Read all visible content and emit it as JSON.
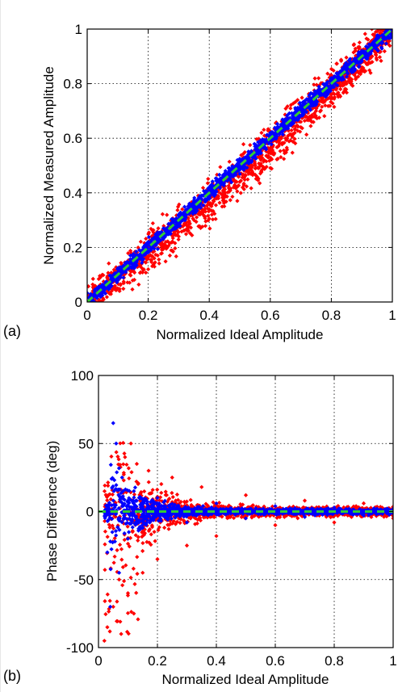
{
  "chart_data": [
    {
      "type": "scatter",
      "panel_label": "(a)",
      "xlabel": "Normalized Ideal Amplitude",
      "ylabel": "Normalized Measured Amplitude",
      "xlim": [
        0,
        1
      ],
      "ylim": [
        0,
        1
      ],
      "xticks": [
        "0",
        "0.2",
        "0.4",
        "0.6",
        "0.8",
        "1"
      ],
      "yticks": [
        "0",
        "0.2",
        "0.4",
        "0.6",
        "0.8",
        "1"
      ],
      "grid": true,
      "series": [
        {
          "color": "#ff0000",
          "marker": "diamond",
          "trend": "y ≈ x, wider spread (±0.1), below diagonal at mid range",
          "x": [
            0.02,
            0.04,
            0.05,
            0.07,
            0.08,
            0.1,
            0.12,
            0.14,
            0.15,
            0.17,
            0.2,
            0.22,
            0.25,
            0.28,
            0.3,
            0.33,
            0.35,
            0.38,
            0.4,
            0.43,
            0.45,
            0.48,
            0.5,
            0.53,
            0.55,
            0.58,
            0.6,
            0.63,
            0.65,
            0.68,
            0.7,
            0.73,
            0.75,
            0.78,
            0.8,
            0.83,
            0.85,
            0.88,
            0.9,
            0.93,
            0.95,
            0.97,
            1.0
          ],
          "y": [
            0.0,
            0.06,
            0.1,
            0.08,
            0.04,
            0.05,
            0.09,
            0.1,
            0.12,
            0.14,
            0.12,
            0.16,
            0.2,
            0.22,
            0.24,
            0.26,
            0.3,
            0.32,
            0.34,
            0.38,
            0.4,
            0.42,
            0.44,
            0.48,
            0.5,
            0.52,
            0.55,
            0.58,
            0.6,
            0.62,
            0.66,
            0.68,
            0.7,
            0.72,
            0.76,
            0.78,
            0.8,
            0.84,
            0.86,
            0.9,
            0.92,
            0.96,
            0.98
          ]
        },
        {
          "color": "#0000ff",
          "marker": "diamond",
          "trend": "y ≈ x, tight spread (±0.04)",
          "x": [
            0.02,
            0.05,
            0.08,
            0.1,
            0.13,
            0.15,
            0.18,
            0.2,
            0.23,
            0.25,
            0.28,
            0.3,
            0.33,
            0.35,
            0.38,
            0.4,
            0.43,
            0.45,
            0.48,
            0.5,
            0.53,
            0.55,
            0.58,
            0.6,
            0.63,
            0.65,
            0.68,
            0.7,
            0.73,
            0.75,
            0.78,
            0.8,
            0.83,
            0.85,
            0.88,
            0.9,
            0.93,
            0.95,
            0.98,
            1.0
          ],
          "y": [
            0.02,
            0.06,
            0.09,
            0.12,
            0.14,
            0.17,
            0.19,
            0.22,
            0.24,
            0.27,
            0.29,
            0.32,
            0.34,
            0.37,
            0.39,
            0.42,
            0.44,
            0.47,
            0.49,
            0.52,
            0.54,
            0.57,
            0.59,
            0.62,
            0.64,
            0.67,
            0.69,
            0.72,
            0.74,
            0.77,
            0.79,
            0.82,
            0.84,
            0.87,
            0.89,
            0.92,
            0.94,
            0.97,
            0.99,
            1.0
          ]
        },
        {
          "color": "#33cc33",
          "style": "dashed",
          "x": [
            0,
            1
          ],
          "y": [
            0,
            1
          ]
        }
      ]
    },
    {
      "type": "scatter",
      "panel_label": "(b)",
      "xlabel": "Normalized Ideal Amplitude",
      "ylabel": "Phase Difference (deg)",
      "xlim": [
        0,
        1
      ],
      "ylim": [
        -100,
        100
      ],
      "xticks": [
        "0",
        "0.2",
        "0.4",
        "0.6",
        "0.8",
        "1"
      ],
      "yticks": [
        "-100",
        "-50",
        "0",
        "50",
        "100"
      ],
      "grid": true,
      "series": [
        {
          "color": "#ff0000",
          "marker": "diamond",
          "trend": "spread ±60 deg near x=0.1, shrinking to ±6 deg at x=1",
          "x": [
            0.02,
            0.03,
            0.05,
            0.07,
            0.09,
            0.1,
            0.11,
            0.12,
            0.13,
            0.15,
            0.17,
            0.2,
            0.25,
            0.3,
            0.35,
            0.4,
            0.5,
            0.6,
            0.7,
            0.8,
            0.9,
            1.0
          ],
          "y": [
            -95,
            -85,
            -70,
            -50,
            40,
            -60,
            50,
            -75,
            35,
            -45,
            30,
            -35,
            25,
            -25,
            18,
            -18,
            12,
            -10,
            8,
            -8,
            6,
            -5
          ]
        },
        {
          "color": "#0000ff",
          "marker": "diamond",
          "trend": "spread ±50 deg near x=0.05, shrinking to ±3 deg at x=1",
          "x": [
            0.03,
            0.04,
            0.05,
            0.06,
            0.07,
            0.08,
            0.1,
            0.12,
            0.15,
            0.2,
            0.3,
            0.4,
            0.5,
            0.6,
            0.7,
            0.8,
            0.9,
            1.0
          ],
          "y": [
            -30,
            -70,
            65,
            50,
            -45,
            25,
            -20,
            15,
            -12,
            10,
            -8,
            6,
            -5,
            4,
            -4,
            3,
            -3,
            2
          ]
        },
        {
          "color": "#33cc33",
          "style": "dashed",
          "x": [
            0,
            1
          ],
          "y": [
            0,
            0
          ]
        }
      ]
    }
  ]
}
